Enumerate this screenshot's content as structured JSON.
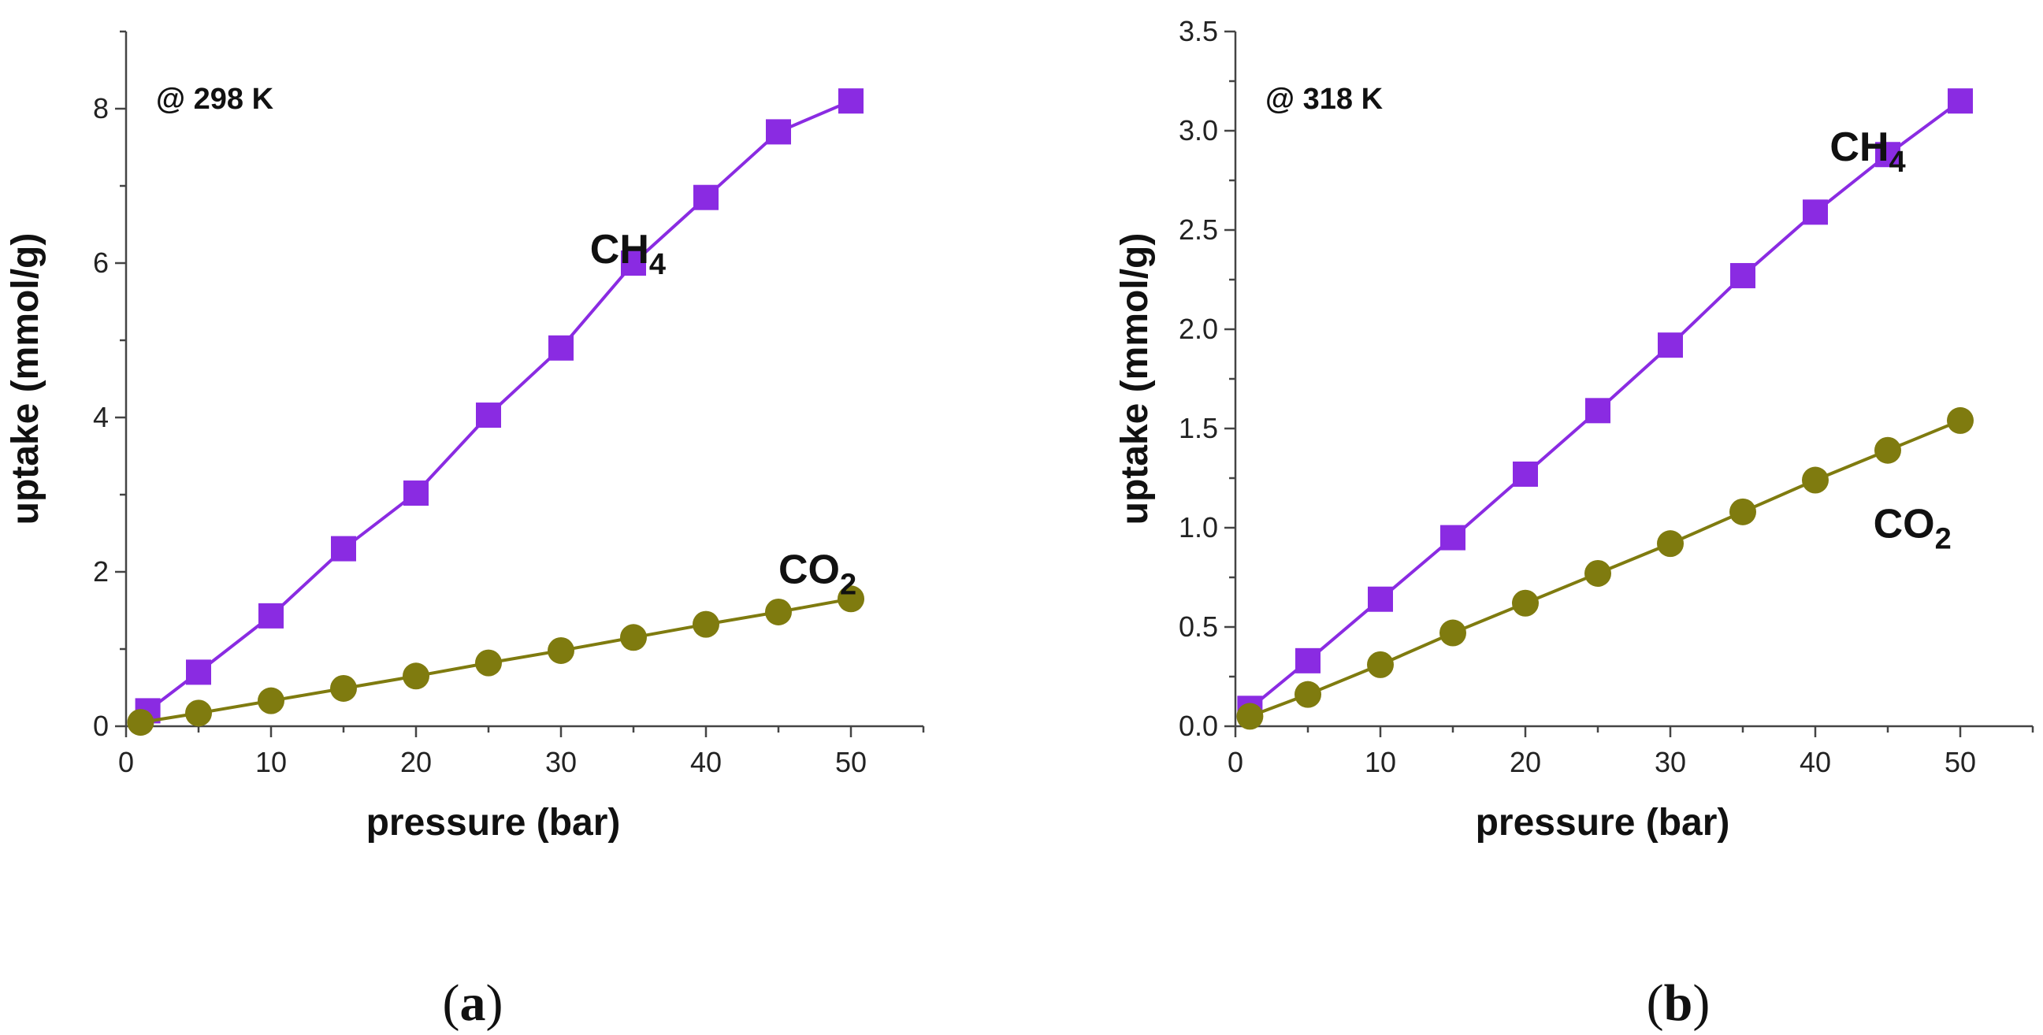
{
  "colors": {
    "ch4": "#8a2be2",
    "co2": "#7f7b0f",
    "axis": "#444444"
  },
  "chart_data": [
    {
      "type": "line",
      "panel_label": {
        "open": "(",
        "letter": "a",
        "close": ")"
      },
      "annotation": "@ 298 K",
      "xlabel": "pressure (bar)",
      "ylabel": "uptake (mmol/g)",
      "xlim": [
        0,
        55
      ],
      "ylim": [
        0,
        9
      ],
      "xticks": [
        0,
        10,
        20,
        30,
        40,
        50
      ],
      "yticks": [
        0,
        2,
        4,
        6,
        8
      ],
      "xtick_labels": [
        "0",
        "10",
        "20",
        "30",
        "40",
        "50"
      ],
      "ytick_labels": [
        "0",
        "2",
        "4",
        "6",
        "8"
      ],
      "series": [
        {
          "name": "CH4",
          "label_main": "CH",
          "label_sub": "4",
          "marker": "square",
          "color": "#8a2be2",
          "x": [
            1.5,
            5,
            10,
            15,
            20,
            25,
            30,
            35,
            40,
            45,
            50
          ],
          "y": [
            0.2,
            0.7,
            1.43,
            2.3,
            3.02,
            4.03,
            4.9,
            6.0,
            6.85,
            7.7,
            8.1
          ],
          "label_at": [
            32,
            6.0
          ]
        },
        {
          "name": "CO2",
          "label_main": "CO",
          "label_sub": "2",
          "marker": "circle",
          "color": "#7f7b0f",
          "x": [
            1,
            5,
            10,
            15,
            20,
            25,
            30,
            35,
            40,
            45,
            50
          ],
          "y": [
            0.05,
            0.17,
            0.33,
            0.49,
            0.65,
            0.82,
            0.98,
            1.15,
            1.32,
            1.48,
            1.65
          ],
          "label_at": [
            45,
            1.85
          ]
        }
      ]
    },
    {
      "type": "line",
      "panel_label": {
        "open": "(",
        "letter": "b",
        "close": ")"
      },
      "annotation": "@ 318 K",
      "xlabel": "pressure (bar)",
      "ylabel": "uptake (mmol/g)",
      "xlim": [
        0,
        55
      ],
      "ylim": [
        0,
        3.5
      ],
      "xticks": [
        0,
        10,
        20,
        30,
        40,
        50
      ],
      "yticks": [
        0,
        0.5,
        1.0,
        1.5,
        2.0,
        2.5,
        3.0,
        3.5
      ],
      "xtick_labels": [
        "0",
        "10",
        "20",
        "30",
        "40",
        "50"
      ],
      "ytick_labels": [
        "0.0",
        "0.5",
        "1.0",
        "1.5",
        "2.0",
        "2.5",
        "3.0",
        "3.5"
      ],
      "series": [
        {
          "name": "CH4",
          "label_main": "CH",
          "label_sub": "4",
          "marker": "square",
          "color": "#8a2be2",
          "x": [
            1,
            5,
            10,
            15,
            20,
            25,
            30,
            35,
            40,
            45,
            50
          ],
          "y": [
            0.09,
            0.33,
            0.64,
            0.95,
            1.27,
            1.59,
            1.92,
            2.27,
            2.59,
            2.88,
            3.15
          ],
          "label_at": [
            41,
            2.85
          ]
        },
        {
          "name": "CO2",
          "label_main": "CO",
          "label_sub": "2",
          "marker": "circle",
          "color": "#7f7b0f",
          "x": [
            1,
            5,
            10,
            15,
            20,
            25,
            30,
            35,
            40,
            45,
            50
          ],
          "y": [
            0.05,
            0.16,
            0.31,
            0.47,
            0.62,
            0.77,
            0.92,
            1.08,
            1.24,
            1.39,
            1.54
          ],
          "label_at": [
            44,
            0.95
          ]
        }
      ]
    }
  ]
}
